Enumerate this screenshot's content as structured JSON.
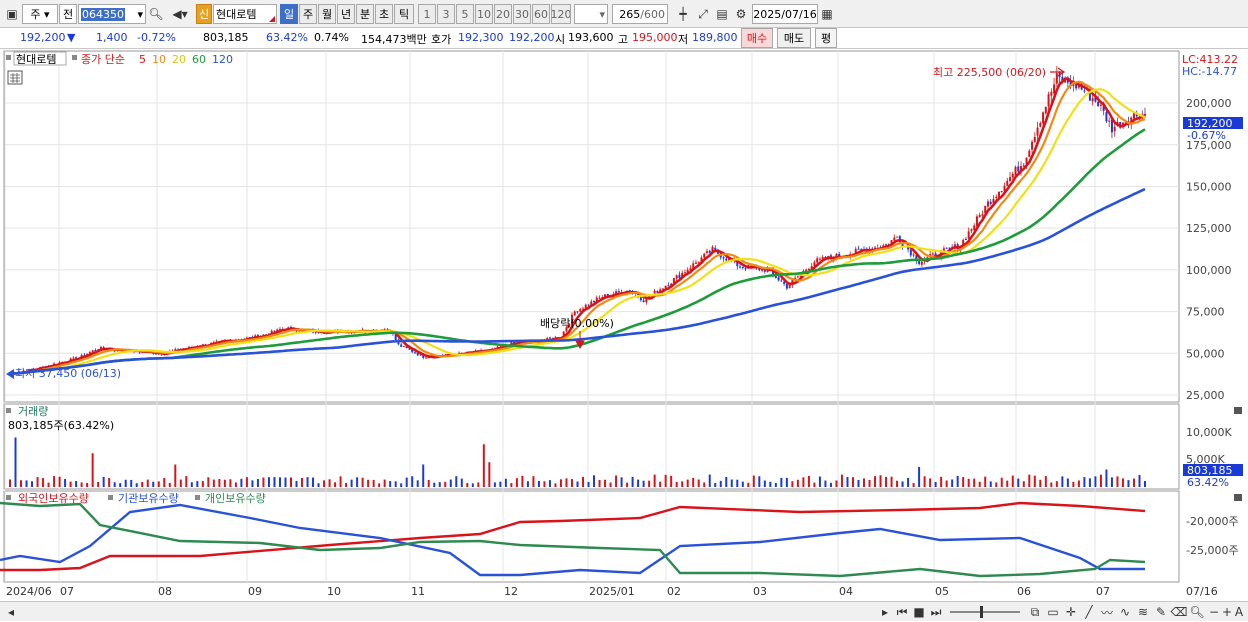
{
  "toolbar": {
    "mode": "주",
    "prev_label": "전",
    "code": "064350",
    "sin_badge": "신",
    "stock_name": "현대로템",
    "periods": [
      "일",
      "주",
      "월",
      "년",
      "분",
      "초",
      "틱"
    ],
    "intervals": [
      "1",
      "3",
      "5",
      "10",
      "20",
      "30",
      "60",
      "120"
    ],
    "count": "265",
    "count_max": "/600",
    "date": "2025/07/16"
  },
  "quote": {
    "price": "192,200",
    "change": "1,400",
    "change_pct": "-0.72%",
    "volume": "803,185",
    "vol_ratio": "63.42%",
    "turnover_pct": "0.74%",
    "amount": "154,473백만",
    "ask_label": "호가",
    "ask": "192,300",
    "bid": "192,200",
    "open_label": "시",
    "open": "193,600",
    "high_label": "고",
    "high": "195,000",
    "low_label": "저",
    "low": "189,800",
    "buy": "매수",
    "sell": "매도",
    "eval": "평"
  },
  "legend": {
    "name": "현대로템",
    "close_label": "종가 단순",
    "ma": [
      "5",
      "10",
      "20",
      "60",
      "120"
    ],
    "ma_colors": [
      "#d8141a",
      "#f08a10",
      "#f0e014",
      "#1e9b3a",
      "#2a52d8"
    ]
  },
  "annotations": {
    "max": "최고 225,500 (06/20)",
    "min": "최저 37,450 (06/13)",
    "dividend": "배당락(0.00%)",
    "lc": "LC:413.22",
    "hc": "HC:-14.77",
    "price_tag": "192,200",
    "pct_tag": "-0.67%"
  },
  "volume_panel": {
    "title": "거래량",
    "value": "803,185주(63.42%)",
    "tag": "803,185",
    "pct_tag": "63.42%"
  },
  "holdings_panel": {
    "labels": [
      "외국인보유수량",
      "기관보유수량",
      "개인보유수량"
    ],
    "colors": [
      "#d8141a",
      "#2a52d8",
      "#2e8a50"
    ]
  },
  "x_labels": [
    "2024/06",
    "07",
    "08",
    "09",
    "10",
    "11",
    "12",
    "2025/01",
    "02",
    "03",
    "04",
    "05",
    "06",
    "07",
    "07/16"
  ],
  "chart_data": {
    "type": "line",
    "price_axis": {
      "ticks": [
        25000,
        50000,
        75000,
        100000,
        125000,
        150000,
        175000,
        200000
      ],
      "tick_labels": [
        "25,000",
        "50,000",
        "75,000",
        "100,000",
        "125,000",
        "150,000",
        "175,000",
        "200,000"
      ]
    },
    "volume_axis": {
      "tick_labels": [
        "10,000K",
        "5,000K"
      ]
    },
    "holdings_axis": {
      "tick_labels": [
        "-20,000주",
        "-25,000주"
      ]
    },
    "anchors_close": [
      [
        0,
        37800
      ],
      [
        10,
        41000
      ],
      [
        25,
        47500
      ],
      [
        32,
        53000
      ],
      [
        55,
        50000
      ],
      [
        70,
        55000
      ],
      [
        90,
        60000
      ],
      [
        100,
        65000
      ],
      [
        110,
        63000
      ],
      [
        125,
        63500
      ],
      [
        138,
        64000
      ],
      [
        141,
        55000
      ],
      [
        150,
        48000
      ],
      [
        160,
        49000
      ],
      [
        165,
        50000
      ],
      [
        175,
        52000
      ],
      [
        182,
        56000
      ],
      [
        192,
        57000
      ],
      [
        200,
        60000
      ],
      [
        205,
        75000
      ],
      [
        215,
        84000
      ],
      [
        225,
        88000
      ],
      [
        230,
        82000
      ],
      [
        240,
        93000
      ],
      [
        255,
        112000
      ],
      [
        265,
        102000
      ],
      [
        275,
        100000
      ],
      [
        282,
        90000
      ],
      [
        292,
        105000
      ],
      [
        305,
        110000
      ],
      [
        318,
        115000
      ],
      [
        322,
        120000
      ],
      [
        330,
        105000
      ],
      [
        345,
        115000
      ],
      [
        355,
        140000
      ],
      [
        368,
        165000
      ],
      [
        375,
        195000
      ],
      [
        380,
        215000
      ],
      [
        388,
        210000
      ],
      [
        395,
        200000
      ],
      [
        400,
        185000
      ],
      [
        405,
        190000
      ],
      [
        410,
        194000
      ],
      [
        412,
        192200
      ]
    ],
    "series": [
      {
        "name": "5",
        "color": "#d8141a"
      },
      {
        "name": "10",
        "color": "#f08a10"
      },
      {
        "name": "20",
        "color": "#f0e014"
      },
      {
        "name": "60",
        "color": "#1e9b3a"
      },
      {
        "name": "120",
        "color": "#2a52d8"
      }
    ]
  },
  "status_icons": [
    "prev",
    "rewind",
    "stop",
    "fwd",
    "zoom"
  ]
}
